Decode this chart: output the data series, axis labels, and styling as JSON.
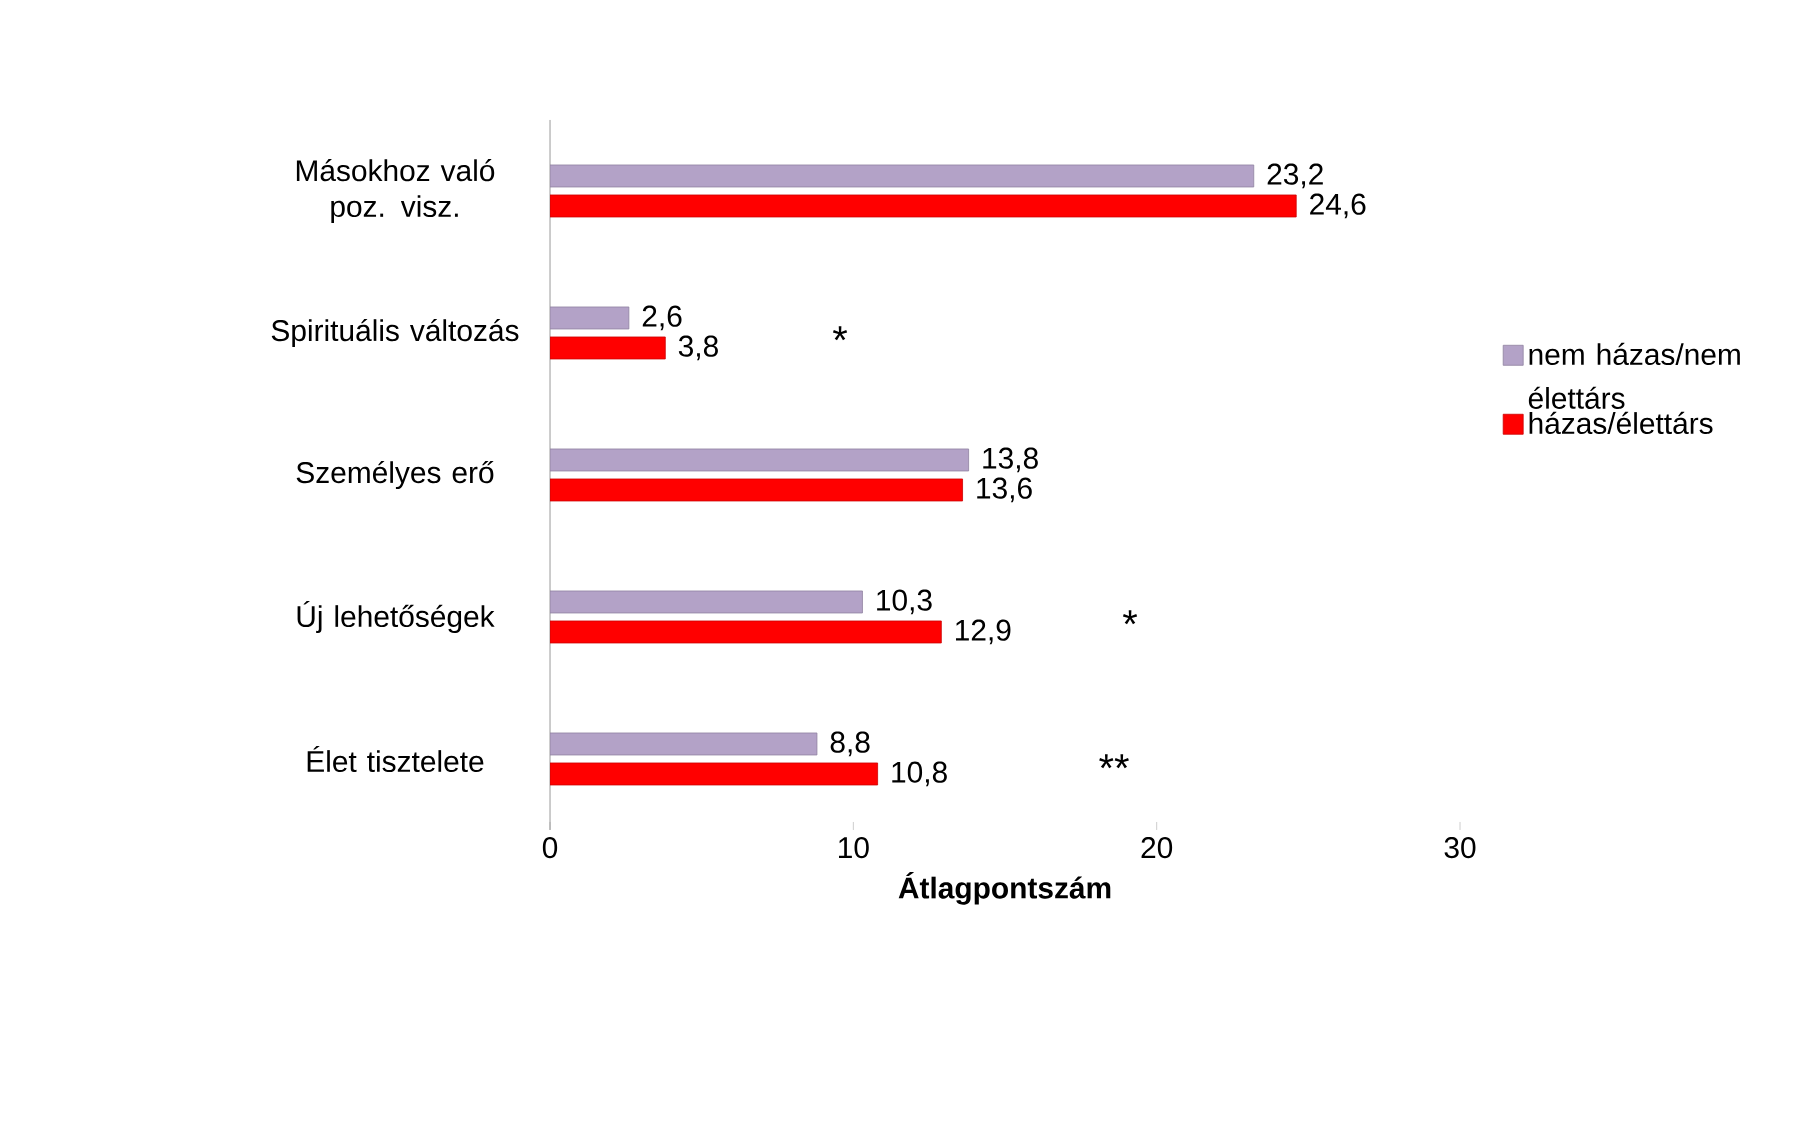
{
  "chart_data": {
    "type": "bar",
    "orientation": "horizontal",
    "xlabel": "Átlagpontszám",
    "categories": [
      "Másokhoz való poz. visz.",
      "Spirituális változás",
      "Személyes erő",
      "Új lehetőségek",
      "Élet tisztelete"
    ],
    "series": [
      {
        "name": "nem házas/nem élettárs",
        "color": "#b3a2c7",
        "values": [
          23.2,
          2.6,
          13.8,
          10.3,
          8.8
        ],
        "value_labels": [
          "23,2",
          "2,6",
          "13,8",
          "10,3",
          "8,8"
        ]
      },
      {
        "name": "házas/élettárs",
        "color": "#ff0000",
        "values": [
          24.6,
          3.8,
          13.6,
          12.9,
          10.8
        ],
        "value_labels": [
          "24,6",
          "3,8",
          "13,6",
          "12,9",
          "10,8"
        ]
      }
    ],
    "xlim": [
      0,
      30
    ],
    "xticks": [
      0,
      10,
      20,
      30
    ],
    "legend": "right",
    "grid": false,
    "annotations": [
      "*",
      "*",
      "**"
    ]
  }
}
